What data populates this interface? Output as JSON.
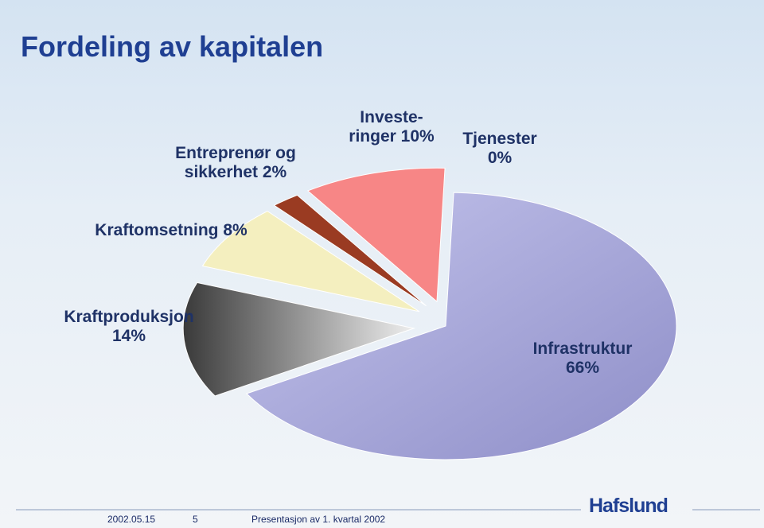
{
  "chart_data": {
    "type": "pie",
    "title": "Fordeling av kapitalen",
    "categories": [
      "Infrastruktur",
      "Kraftproduksjon",
      "Kraftomsetning",
      "Entreprenør og\nsikkerhet",
      "Investe-\nringer",
      "Tjenester"
    ],
    "values": [
      66,
      14,
      8,
      2,
      10,
      0
    ],
    "value_labels": [
      "66%",
      "14%",
      "8%",
      "2%",
      "10%",
      "0%"
    ],
    "colors": [
      "#9c9cd4",
      "#5a5a5a",
      "#f4efbf",
      "#9a3b22",
      "#f78686",
      "#cccccc"
    ]
  },
  "footer": {
    "date": "2002.05.15",
    "page": "5",
    "text": "Presentasjon av 1. kvartal 2002",
    "logo": "Hafslund"
  }
}
